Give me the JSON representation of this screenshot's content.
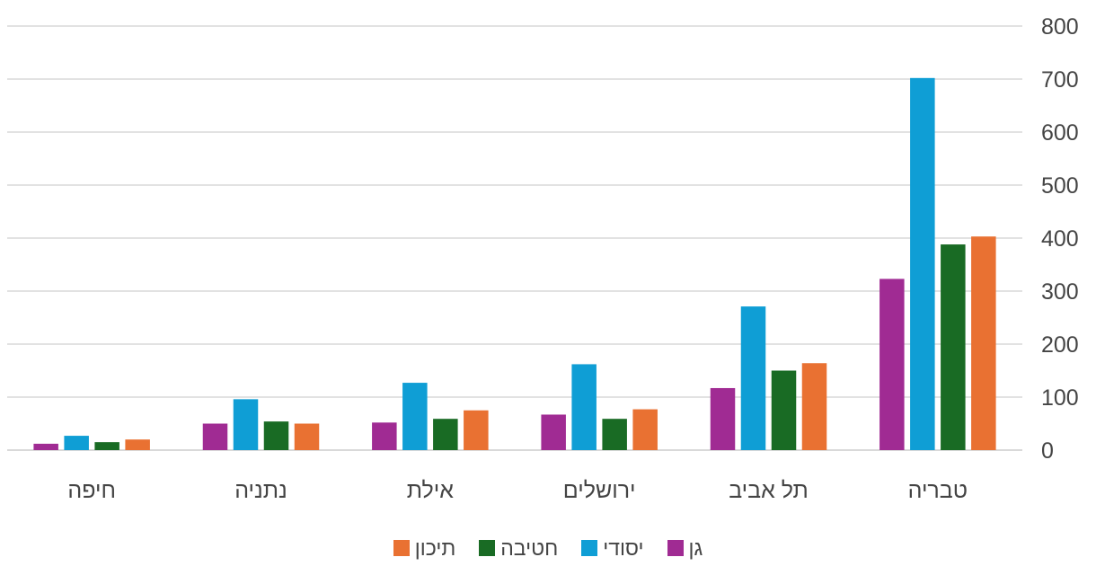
{
  "chart_data": {
    "type": "bar",
    "categories": [
      "טבריה",
      "תל אביב",
      "ירושלים",
      "אילת",
      "נתניה",
      "חיפה"
    ],
    "series": [
      {
        "name": "גן",
        "color": "#A02B93",
        "values": [
          323,
          117,
          67,
          52,
          50,
          12
        ]
      },
      {
        "name": "יסודי",
        "color": "#0F9ED5",
        "values": [
          702,
          271,
          162,
          127,
          96,
          27
        ]
      },
      {
        "name": "חטיבה",
        "color": "#196B24",
        "values": [
          388,
          150,
          59,
          59,
          54,
          15
        ]
      },
      {
        "name": "תיכון",
        "color": "#E97132",
        "values": [
          403,
          164,
          77,
          75,
          50,
          20
        ]
      }
    ],
    "ylim": [
      0,
      800
    ],
    "yticks": [
      0,
      100,
      200,
      300,
      400,
      500,
      600,
      700,
      800
    ],
    "y_axis_side": "right",
    "category_order": "right-to-left",
    "grid": true,
    "legend_position": "bottom"
  }
}
